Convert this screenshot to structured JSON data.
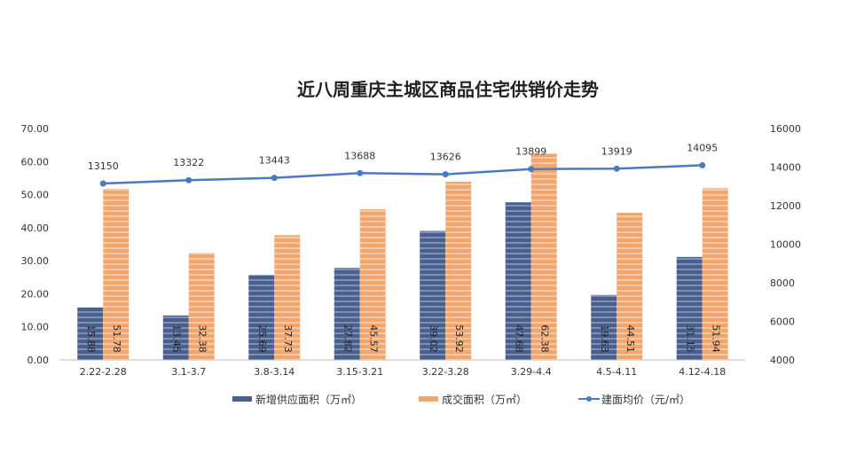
{
  "chart_data": {
    "type": "bar+line",
    "title": "近八周重庆主城区商品住宅供销价走势",
    "categories": [
      "2.22-2.28",
      "3.1-3.7",
      "3.8-3.14",
      "3.15-3.21",
      "3.22-3.28",
      "3.29-4.4",
      "4.5-4.11",
      "4.12-4.18"
    ],
    "series": [
      {
        "name": "新增供应面积（万㎡）",
        "type": "bar",
        "axis": "left",
        "color": "#4a5f8c",
        "values": [
          15.88,
          13.45,
          25.69,
          27.82,
          39.02,
          47.68,
          19.63,
          31.15
        ]
      },
      {
        "name": "成交面积（万㎡）",
        "type": "bar",
        "axis": "left",
        "color": "#f0a66e",
        "values": [
          51.78,
          32.38,
          37.73,
          45.57,
          53.92,
          62.38,
          44.51,
          51.94
        ]
      },
      {
        "name": "建面均价（元/㎡）",
        "type": "line",
        "axis": "right",
        "color": "#4a7ac0",
        "values": [
          13150,
          13322,
          13443,
          13688,
          13626,
          13899,
          13919,
          14095
        ]
      }
    ],
    "left_axis": {
      "range": [
        0,
        70
      ],
      "ticks": [
        "0.00",
        "10.00",
        "20.00",
        "30.00",
        "40.00",
        "50.00",
        "60.00",
        "70.00"
      ]
    },
    "right_axis": {
      "range": [
        4000,
        16000
      ],
      "ticks": [
        "4000",
        "6000",
        "8000",
        "10000",
        "12000",
        "14000",
        "16000"
      ]
    },
    "grid": false,
    "legend_position": "bottom"
  }
}
